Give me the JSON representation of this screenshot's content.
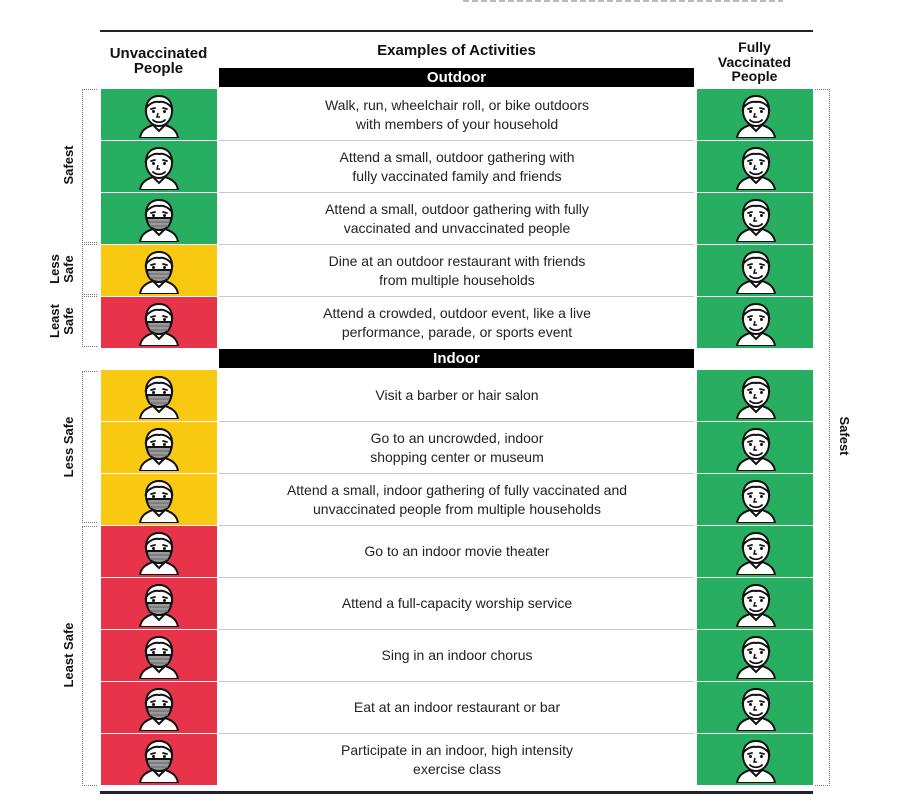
{
  "headers": {
    "unvaccinated": [
      "Unvaccinated",
      "People"
    ],
    "activities": "Examples of Activities",
    "vaccinated": [
      "Fully",
      "Vaccinated",
      "People"
    ]
  },
  "sections": {
    "outdoor": "Outdoor",
    "indoor": "Indoor"
  },
  "colors": {
    "safest": "#27ae60",
    "less_safe": "#f9c912",
    "least_safe": "#e8344a"
  },
  "outdoor_rows": [
    {
      "activity": "Walk, run, wheelchair roll, or bike outdoors\nwith members of your household",
      "unvaccinated_risk": "safest",
      "unvaccinated_mask": false,
      "vaccinated_risk": "safest",
      "vaccinated_mask": false
    },
    {
      "activity": "Attend a small, outdoor gathering with\nfully vaccinated family and friends",
      "unvaccinated_risk": "safest",
      "unvaccinated_mask": false,
      "vaccinated_risk": "safest",
      "vaccinated_mask": false
    },
    {
      "activity": "Attend a small, outdoor gathering with fully\nvaccinated and unvaccinated people",
      "unvaccinated_risk": "safest",
      "unvaccinated_mask": true,
      "vaccinated_risk": "safest",
      "vaccinated_mask": false
    },
    {
      "activity": "Dine at an outdoor restaurant with friends\nfrom multiple households",
      "unvaccinated_risk": "less_safe",
      "unvaccinated_mask": true,
      "vaccinated_risk": "safest",
      "vaccinated_mask": false
    },
    {
      "activity": "Attend a crowded, outdoor event, like a live\nperformance, parade, or sports event",
      "unvaccinated_risk": "least_safe",
      "unvaccinated_mask": true,
      "vaccinated_risk": "safest",
      "vaccinated_mask": false
    }
  ],
  "indoor_rows": [
    {
      "activity": "Visit a barber or hair salon",
      "unvaccinated_risk": "less_safe",
      "unvaccinated_mask": true,
      "vaccinated_risk": "safest",
      "vaccinated_mask": false
    },
    {
      "activity": "Go to an uncrowded, indoor\nshopping center or museum",
      "unvaccinated_risk": "less_safe",
      "unvaccinated_mask": true,
      "vaccinated_risk": "safest",
      "vaccinated_mask": false
    },
    {
      "activity": "Attend a small, indoor gathering of fully vaccinated and\nunvaccinated people from multiple households",
      "unvaccinated_risk": "less_safe",
      "unvaccinated_mask": true,
      "vaccinated_risk": "safest",
      "vaccinated_mask": false
    },
    {
      "activity": "Go to an indoor movie theater",
      "unvaccinated_risk": "least_safe",
      "unvaccinated_mask": true,
      "vaccinated_risk": "safest",
      "vaccinated_mask": false
    },
    {
      "activity": "Attend a full-capacity worship service",
      "unvaccinated_risk": "least_safe",
      "unvaccinated_mask": true,
      "vaccinated_risk": "safest",
      "vaccinated_mask": false
    },
    {
      "activity": "Sing in an indoor chorus",
      "unvaccinated_risk": "least_safe",
      "unvaccinated_mask": true,
      "vaccinated_risk": "safest",
      "vaccinated_mask": false
    },
    {
      "activity": "Eat at an indoor restaurant or bar",
      "unvaccinated_risk": "least_safe",
      "unvaccinated_mask": true,
      "vaccinated_risk": "safest",
      "vaccinated_mask": false
    },
    {
      "activity": "Participate in an indoor, high intensity\nexercise class",
      "unvaccinated_risk": "least_safe",
      "unvaccinated_mask": true,
      "vaccinated_risk": "safest",
      "vaccinated_mask": false
    }
  ],
  "side_labels": {
    "safest": "Safest",
    "less_safe_outdoor": [
      "Less",
      "Safe"
    ],
    "least_safe_outdoor": [
      "Least",
      "Safe"
    ],
    "less_safe_indoor": "Less Safe",
    "least_safe_indoor": "Least Safe",
    "vaccinated_safest": "Safest"
  },
  "icons": {
    "face": "smiling-face-icon",
    "masked_face": "masked-face-icon"
  }
}
